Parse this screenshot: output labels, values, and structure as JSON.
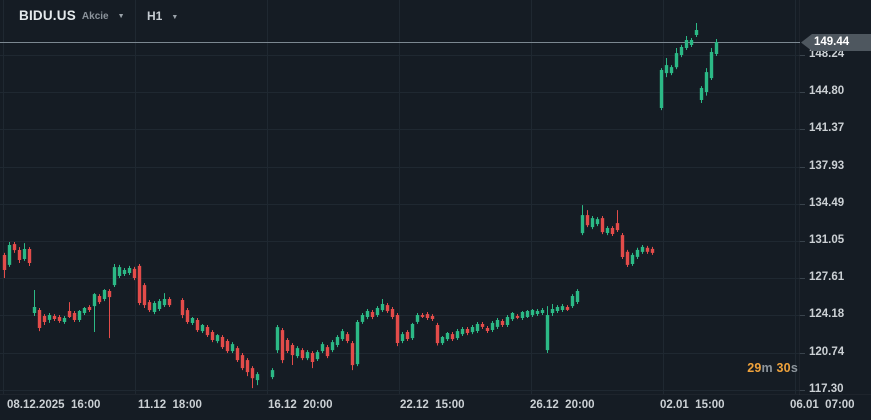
{
  "header": {
    "symbol": "BIDU.US",
    "instrument_type": "Akcie",
    "timeframe": "H1"
  },
  "price_axis": {
    "current_price": "149.44"
  },
  "time_axis": {
    "labels": [
      "08.12.2025  16:00",
      "11.12  18:00",
      "16.12  20:00",
      "22.12  15:00",
      "26.12  20:00",
      "02.01  15:00",
      "06.01  07:00"
    ]
  },
  "countdown": {
    "minutes": "29",
    "minutes_unit": "m",
    "seconds": "30",
    "seconds_unit": "s"
  },
  "colors": {
    "background": "#151c24",
    "bullish": "#2cb986",
    "bearish": "#e34c4a",
    "grid": "#1f2831",
    "price_line": "#7c8891",
    "axis_text": "#cbd0d4",
    "tag_background": "#4e575f",
    "countdown_accent": "#efa23b"
  },
  "chart_data": {
    "type": "candlestick",
    "title": "BIDU.US Akcie H1",
    "symbol": "BIDU.US",
    "interval": "H1",
    "grid": true,
    "legend_position": "none",
    "current_price": 149.44,
    "y_axis": {
      "ticks": [
        148.24,
        144.8,
        141.37,
        137.93,
        134.49,
        131.05,
        127.61,
        124.18,
        120.74,
        117.3
      ],
      "range_shown": [
        116.8,
        151.6
      ]
    },
    "x_axis": {
      "labels": [
        "08.12.2025 16:00",
        "11.12 18:00",
        "16.12 20:00",
        "22.12 15:00",
        "26.12 20:00",
        "02.01 15:00",
        "06.01 07:00"
      ]
    },
    "ohlc_format": [
      "open",
      "high",
      "low",
      "close"
    ],
    "candles": [
      [
        129.76,
        129.95,
        127.63,
        128.37
      ],
      [
        128.84,
        130.96,
        128.66,
        130.68
      ],
      [
        130.77,
        130.96,
        129.95,
        130.22
      ],
      [
        130.22,
        130.49,
        129.02,
        129.3
      ],
      [
        129.39,
        130.86,
        129.21,
        130.31
      ],
      [
        130.31,
        130.49,
        128.74,
        129.02
      ],
      [
        124.4,
        126.52,
        124.12,
        124.95
      ],
      [
        124.68,
        124.86,
        122.73,
        123.02
      ],
      [
        124.12,
        124.3,
        123.29,
        123.57
      ],
      [
        123.76,
        124.4,
        123.48,
        124.21
      ],
      [
        124.12,
        124.3,
        123.66,
        123.84
      ],
      [
        124.03,
        124.21,
        123.48,
        123.66
      ],
      [
        123.57,
        124.12,
        123.39,
        123.94
      ],
      [
        124.58,
        125.41,
        123.94,
        124.03
      ],
      [
        124.4,
        124.58,
        123.57,
        123.75
      ],
      [
        123.75,
        124.68,
        123.57,
        124.58
      ],
      [
        124.4,
        124.95,
        124.21,
        124.86
      ],
      [
        124.95,
        125.13,
        124.49,
        124.67
      ],
      [
        125.04,
        126.24,
        122.64,
        126.15
      ],
      [
        125.97,
        126.15,
        125.23,
        125.41
      ],
      [
        125.69,
        126.61,
        125.5,
        126.52
      ],
      [
        126.43,
        126.61,
        122.08,
        125.87
      ],
      [
        126.98,
        128.93,
        126.8,
        128.64
      ],
      [
        127.82,
        128.84,
        127.63,
        128.64
      ],
      [
        128.0,
        128.56,
        127.82,
        128.37
      ],
      [
        128.1,
        128.75,
        127.91,
        128.56
      ],
      [
        128.47,
        128.66,
        127.44,
        127.63
      ],
      [
        128.75,
        128.93,
        125.13,
        125.32
      ],
      [
        126.98,
        127.16,
        124.86,
        125.13
      ],
      [
        125.41,
        125.6,
        124.49,
        124.67
      ],
      [
        124.49,
        125.5,
        124.3,
        125.32
      ],
      [
        124.77,
        125.69,
        124.58,
        125.5
      ],
      [
        125.13,
        126.24,
        124.95,
        125.69
      ],
      [
        125.69,
        125.87,
        124.95,
        125.13
      ],
      [
        125.6,
        125.78,
        123.93,
        124.21
      ],
      [
        124.67,
        124.86,
        123.39,
        123.57
      ],
      [
        123.48,
        124.03,
        123.29,
        123.94
      ],
      [
        123.75,
        123.94,
        122.64,
        122.82
      ],
      [
        122.73,
        123.38,
        122.55,
        123.29
      ],
      [
        123.11,
        123.29,
        122.18,
        122.36
      ],
      [
        122.64,
        122.82,
        121.71,
        121.9
      ],
      [
        121.81,
        122.45,
        121.62,
        122.36
      ],
      [
        122.18,
        122.36,
        121.07,
        121.25
      ],
      [
        121.81,
        121.99,
        120.7,
        120.88
      ],
      [
        120.88,
        121.71,
        120.7,
        121.53
      ],
      [
        121.16,
        121.34,
        119.87,
        120.05
      ],
      [
        120.51,
        120.7,
        119.12,
        119.31
      ],
      [
        120.05,
        120.23,
        118.57,
        118.94
      ],
      [
        119.31,
        119.49,
        117.46,
        118.38
      ],
      [
        118.2,
        118.94,
        117.74,
        118.75
      ],
      [
        118.47,
        119.31,
        118.29,
        119.12
      ],
      [
        120.97,
        123.29,
        120.7,
        123.1
      ],
      [
        122.82,
        123.01,
        119.77,
        120.05
      ],
      [
        121.9,
        122.08,
        120.7,
        120.88
      ],
      [
        121.44,
        121.62,
        119.59,
        120.51
      ],
      [
        120.42,
        121.34,
        120.23,
        121.16
      ],
      [
        120.97,
        121.16,
        120.05,
        120.23
      ],
      [
        120.23,
        120.97,
        120.05,
        120.79
      ],
      [
        120.7,
        120.88,
        119.31,
        119.87
      ],
      [
        120.14,
        120.97,
        119.96,
        120.79
      ],
      [
        120.88,
        121.71,
        120.7,
        121.53
      ],
      [
        121.25,
        121.44,
        120.23,
        120.42
      ],
      [
        120.97,
        121.9,
        120.79,
        121.71
      ],
      [
        121.44,
        122.36,
        121.25,
        122.18
      ],
      [
        121.99,
        122.92,
        121.81,
        122.73
      ],
      [
        122.45,
        122.64,
        121.62,
        121.81
      ],
      [
        121.62,
        121.81,
        119.12,
        119.59
      ],
      [
        119.68,
        123.75,
        119.49,
        123.57
      ],
      [
        123.57,
        124.4,
        123.39,
        124.21
      ],
      [
        124.03,
        124.77,
        123.84,
        124.58
      ],
      [
        124.49,
        124.68,
        123.84,
        124.03
      ],
      [
        124.21,
        125.04,
        124.03,
        124.86
      ],
      [
        124.67,
        125.69,
        124.49,
        125.23
      ],
      [
        125.13,
        125.32,
        124.4,
        124.58
      ],
      [
        124.77,
        124.95,
        123.84,
        124.03
      ],
      [
        124.21,
        124.4,
        121.34,
        121.62
      ],
      [
        121.81,
        122.64,
        121.62,
        122.45
      ],
      [
        122.64,
        122.82,
        121.81,
        121.99
      ],
      [
        122.08,
        123.48,
        121.9,
        123.38
      ],
      [
        123.57,
        124.4,
        123.39,
        124.21
      ],
      [
        124.21,
        124.4,
        123.94,
        124.03
      ],
      [
        124.3,
        124.49,
        123.75,
        123.94
      ],
      [
        124.12,
        124.3,
        123.66,
        123.84
      ],
      [
        123.29,
        123.48,
        121.4,
        121.62
      ],
      [
        121.62,
        122.27,
        121.44,
        122.18
      ],
      [
        121.99,
        122.64,
        121.81,
        122.55
      ],
      [
        122.45,
        122.64,
        121.81,
        121.99
      ],
      [
        122.08,
        122.92,
        121.9,
        122.73
      ],
      [
        122.45,
        123.11,
        122.27,
        122.92
      ],
      [
        122.92,
        123.11,
        122.36,
        122.55
      ],
      [
        122.64,
        123.29,
        122.45,
        123.11
      ],
      [
        122.73,
        123.57,
        122.55,
        123.38
      ],
      [
        123.38,
        123.57,
        122.92,
        123.11
      ],
      [
        123.01,
        123.2,
        122.55,
        122.73
      ],
      [
        122.82,
        123.66,
        122.64,
        123.48
      ],
      [
        123.11,
        123.94,
        122.92,
        123.75
      ],
      [
        123.66,
        123.84,
        123.11,
        123.29
      ],
      [
        123.29,
        124.21,
        123.11,
        124.03
      ],
      [
        123.84,
        124.49,
        123.66,
        124.4
      ],
      [
        124.12,
        124.3,
        123.84,
        123.94
      ],
      [
        123.94,
        124.58,
        123.75,
        124.49
      ],
      [
        124.03,
        124.68,
        123.94,
        124.58
      ],
      [
        124.21,
        124.77,
        124.03,
        124.68
      ],
      [
        124.3,
        124.77,
        124.12,
        124.58
      ],
      [
        124.4,
        124.86,
        124.21,
        124.68
      ],
      [
        120.97,
        125.04,
        120.7,
        124.21
      ],
      [
        124.4,
        125.23,
        124.12,
        124.77
      ],
      [
        124.58,
        125.13,
        124.4,
        124.95
      ],
      [
        124.68,
        125.23,
        124.49,
        125.04
      ],
      [
        124.95,
        125.13,
        124.58,
        124.68
      ],
      [
        125.04,
        126.15,
        124.86,
        125.97
      ],
      [
        125.41,
        126.61,
        125.23,
        126.43
      ],
      [
        131.79,
        134.37,
        131.6,
        133.45
      ],
      [
        133.45,
        133.91,
        132.34,
        132.52
      ],
      [
        132.34,
        133.36,
        132.15,
        133.17
      ],
      [
        132.62,
        133.26,
        132.43,
        133.08
      ],
      [
        133.17,
        133.36,
        131.69,
        131.88
      ],
      [
        131.79,
        132.43,
        131.6,
        132.25
      ],
      [
        132.25,
        132.43,
        131.51,
        131.7
      ],
      [
        132.71,
        133.91,
        131.88,
        132.06
      ],
      [
        131.6,
        131.79,
        129.39,
        129.58
      ],
      [
        130.05,
        130.23,
        128.65,
        128.84
      ],
      [
        128.93,
        129.95,
        128.75,
        129.77
      ],
      [
        129.58,
        130.42,
        129.39,
        130.23
      ],
      [
        130.05,
        130.68,
        129.86,
        130.51
      ],
      [
        130.42,
        130.6,
        129.86,
        130.05
      ],
      [
        130.32,
        130.51,
        129.77,
        129.95
      ],
      [
        143.34,
        147.03,
        143.15,
        146.85
      ],
      [
        146.57,
        147.96,
        146.2,
        147.31
      ],
      [
        146.57,
        147.31,
        146.38,
        147.12
      ],
      [
        147.12,
        148.89,
        146.94,
        148.42
      ],
      [
        148.24,
        149.17,
        148.05,
        148.98
      ],
      [
        148.89,
        150.0,
        148.7,
        149.63
      ],
      [
        149.17,
        149.81,
        148.98,
        149.63
      ],
      [
        150.09,
        151.2,
        149.9,
        150.55
      ],
      [
        144.08,
        145.37,
        143.8,
        145.19
      ],
      [
        144.82,
        147.03,
        144.49,
        146.66
      ],
      [
        146.11,
        148.89,
        145.93,
        148.52
      ],
      [
        148.33,
        149.72,
        148.15,
        149.44
      ]
    ]
  }
}
